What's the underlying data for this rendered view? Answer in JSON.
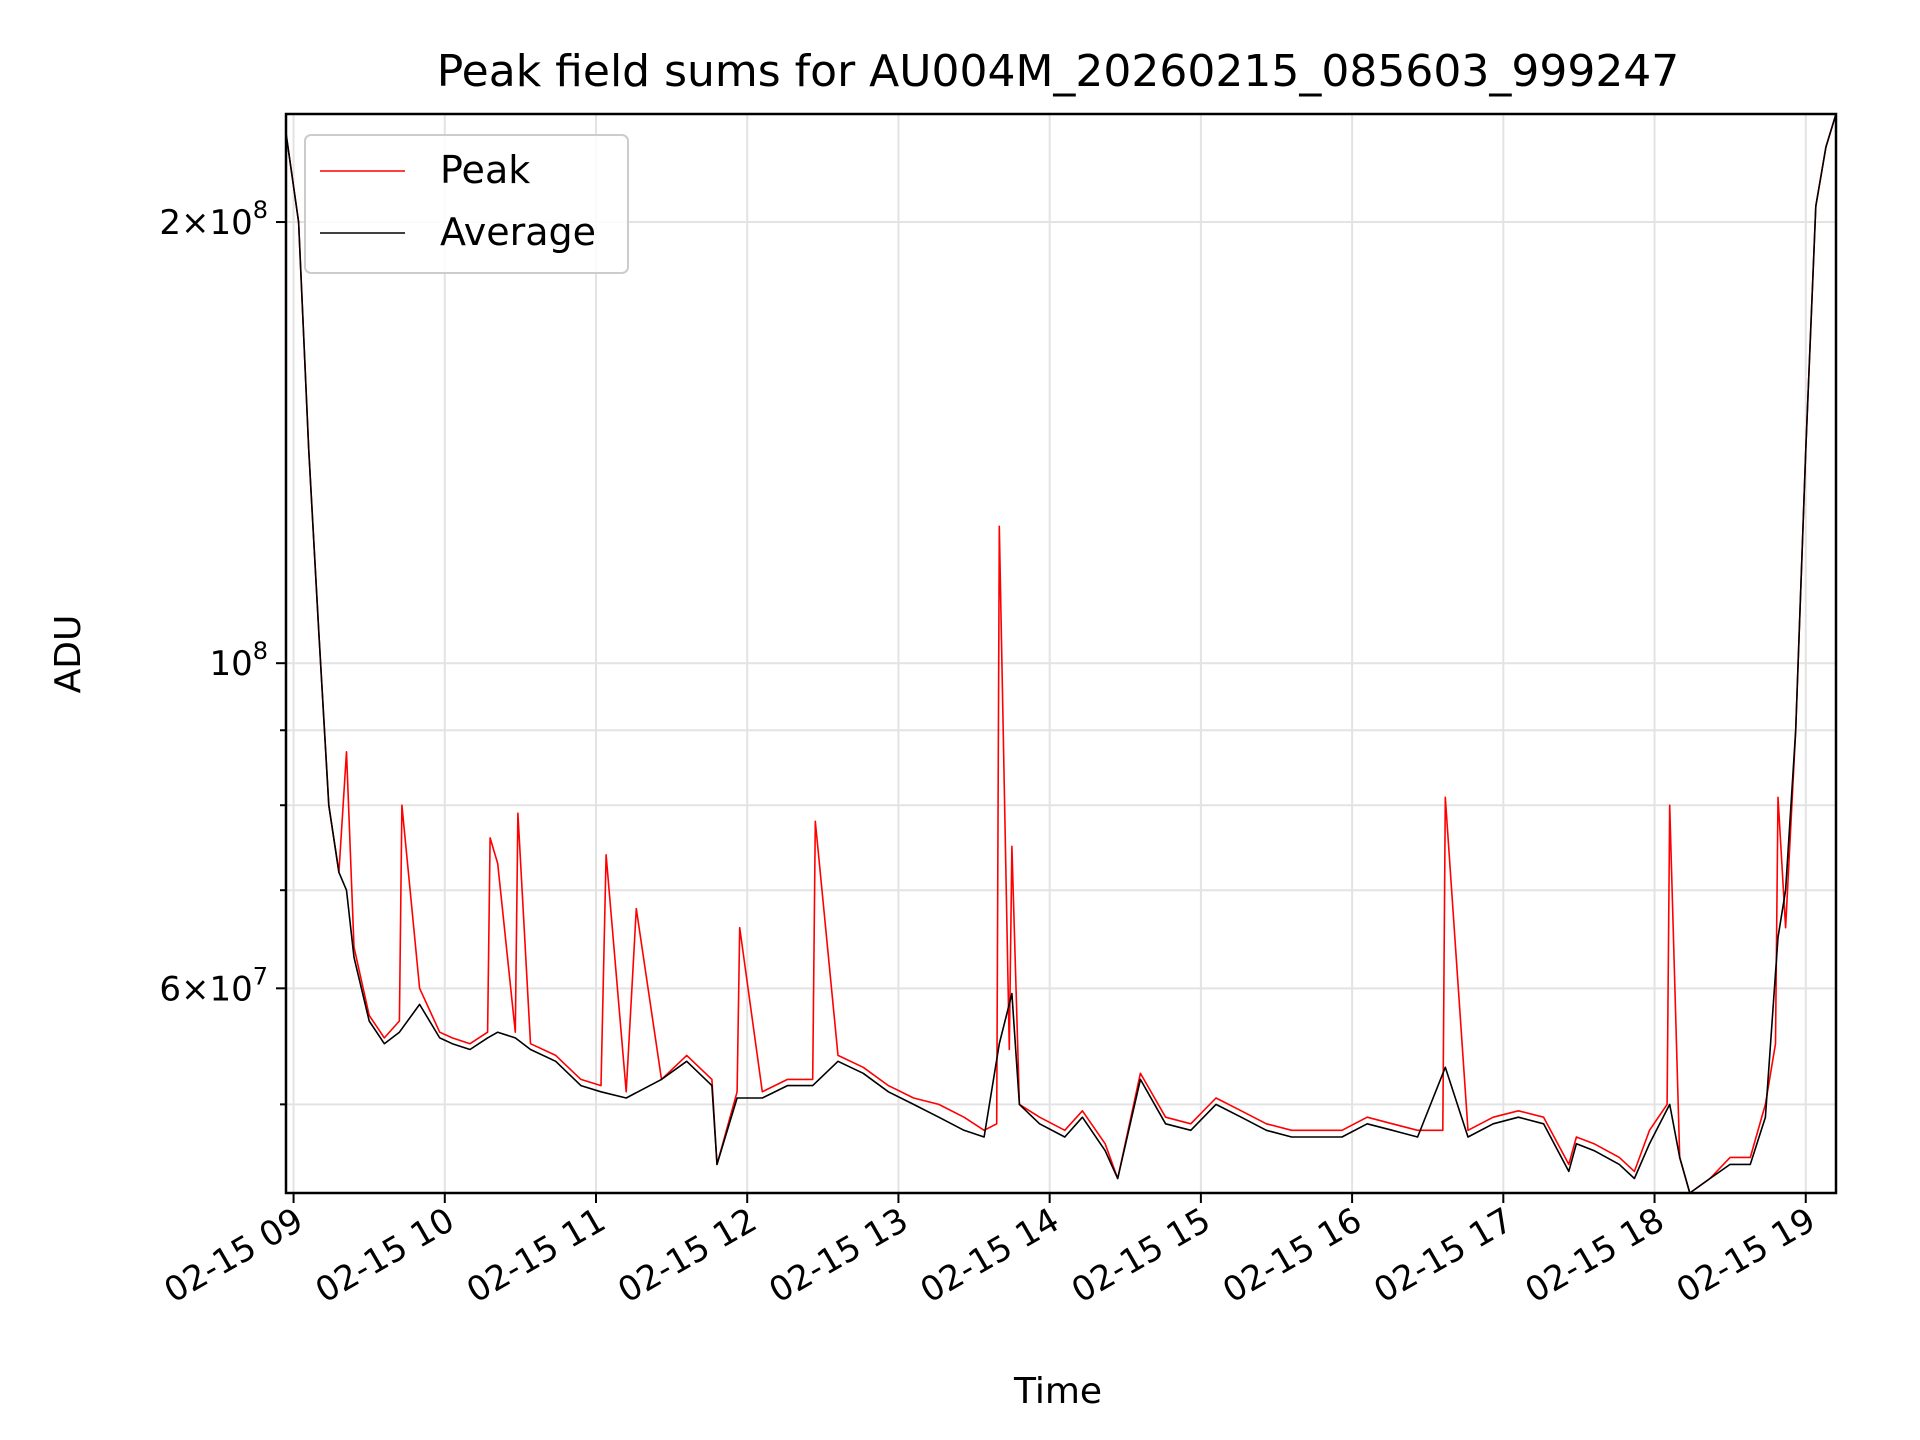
{
  "chart_data": {
    "type": "line",
    "title": "Peak field sums for AU004M_20260215_085603_999247",
    "xlabel": "Time",
    "ylabel": "ADU",
    "y_scale": "log",
    "grid": true,
    "legend_position": "top-left",
    "xlim": [
      "2026-02-15 08:57",
      "2026-02-15 19:12"
    ],
    "ylim": [
      43500000,
      237000000
    ],
    "x_ticks": [
      {
        "at": "2026-02-15 09:00",
        "label": "02-15 09"
      },
      {
        "at": "2026-02-15 10:00",
        "label": "02-15 10"
      },
      {
        "at": "2026-02-15 11:00",
        "label": "02-15 11"
      },
      {
        "at": "2026-02-15 12:00",
        "label": "02-15 12"
      },
      {
        "at": "2026-02-15 13:00",
        "label": "02-15 13"
      },
      {
        "at": "2026-02-15 14:00",
        "label": "02-15 14"
      },
      {
        "at": "2026-02-15 15:00",
        "label": "02-15 15"
      },
      {
        "at": "2026-02-15 16:00",
        "label": "02-15 16"
      },
      {
        "at": "2026-02-15 17:00",
        "label": "02-15 17"
      },
      {
        "at": "2026-02-15 18:00",
        "label": "02-15 18"
      },
      {
        "at": "2026-02-15 19:00",
        "label": "02-15 19"
      }
    ],
    "y_major_ticks": [
      {
        "value": 60000000,
        "mantissa": "6",
        "exponent": "7"
      },
      {
        "value": 100000000,
        "mantissa": "",
        "exponent": "8"
      },
      {
        "value": 200000000,
        "mantissa": "2",
        "exponent": "8"
      }
    ],
    "y_minor_ticks": [
      50000000,
      70000000,
      80000000,
      90000000
    ],
    "series": [
      {
        "name": "Peak",
        "color": "#ff0000",
        "x": [
          "2026-02-15 08:57",
          "2026-02-15 09:02",
          "2026-02-15 09:06",
          "2026-02-15 09:10",
          "2026-02-15 09:14",
          "2026-02-15 09:18",
          "2026-02-15 09:21",
          "2026-02-15 09:24",
          "2026-02-15 09:30",
          "2026-02-15 09:36",
          "2026-02-15 09:42",
          "2026-02-15 09:43",
          "2026-02-15 09:50",
          "2026-02-15 09:58",
          "2026-02-15 10:03",
          "2026-02-15 10:10",
          "2026-02-15 10:17",
          "2026-02-15 10:18",
          "2026-02-15 10:21",
          "2026-02-15 10:28",
          "2026-02-15 10:29",
          "2026-02-15 10:34",
          "2026-02-15 10:44",
          "2026-02-15 10:54",
          "2026-02-15 11:02",
          "2026-02-15 11:04",
          "2026-02-15 11:12",
          "2026-02-15 11:16",
          "2026-02-15 11:26",
          "2026-02-15 11:36",
          "2026-02-15 11:46",
          "2026-02-15 11:48",
          "2026-02-15 11:56",
          "2026-02-15 11:57",
          "2026-02-15 12:06",
          "2026-02-15 12:16",
          "2026-02-15 12:26",
          "2026-02-15 12:27",
          "2026-02-15 12:36",
          "2026-02-15 12:46",
          "2026-02-15 12:56",
          "2026-02-15 13:06",
          "2026-02-15 13:16",
          "2026-02-15 13:26",
          "2026-02-15 13:34",
          "2026-02-15 13:39",
          "2026-02-15 13:40",
          "2026-02-15 13:44",
          "2026-02-15 13:45",
          "2026-02-15 13:48",
          "2026-02-15 13:56",
          "2026-02-15 14:06",
          "2026-02-15 14:13",
          "2026-02-15 14:22",
          "2026-02-15 14:27",
          "2026-02-15 14:36",
          "2026-02-15 14:46",
          "2026-02-15 14:56",
          "2026-02-15 15:06",
          "2026-02-15 15:16",
          "2026-02-15 15:26",
          "2026-02-15 15:36",
          "2026-02-15 15:46",
          "2026-02-15 15:56",
          "2026-02-15 16:06",
          "2026-02-15 16:16",
          "2026-02-15 16:26",
          "2026-02-15 16:36",
          "2026-02-15 16:37",
          "2026-02-15 16:46",
          "2026-02-15 16:56",
          "2026-02-15 17:06",
          "2026-02-15 17:16",
          "2026-02-15 17:26",
          "2026-02-15 17:29",
          "2026-02-15 17:36",
          "2026-02-15 17:46",
          "2026-02-15 17:52",
          "2026-02-15 17:58",
          "2026-02-15 18:05",
          "2026-02-15 18:06",
          "2026-02-15 18:10",
          "2026-02-15 18:14",
          "2026-02-15 18:22",
          "2026-02-15 18:30",
          "2026-02-15 18:38",
          "2026-02-15 18:44",
          "2026-02-15 18:48",
          "2026-02-15 18:49",
          "2026-02-15 18:52",
          "2026-02-15 18:56",
          "2026-02-15 19:00",
          "2026-02-15 19:04",
          "2026-02-15 19:08",
          "2026-02-15 19:12"
        ],
        "y": [
          230000000,
          200000000,
          140000000,
          105000000,
          80000000,
          72000000,
          87000000,
          64000000,
          57500000,
          55500000,
          57000000,
          80000000,
          60000000,
          56000000,
          55500000,
          55000000,
          56000000,
          76000000,
          73000000,
          56000000,
          79000000,
          55000000,
          54000000,
          52000000,
          51500000,
          74000000,
          51000000,
          68000000,
          52000000,
          54000000,
          52000000,
          45500000,
          51000000,
          66000000,
          51000000,
          52000000,
          52000000,
          78000000,
          54000000,
          53000000,
          51500000,
          50500000,
          50000000,
          49000000,
          48000000,
          48500000,
          124000000,
          54500000,
          75000000,
          50000000,
          49000000,
          48000000,
          49500000,
          47000000,
          44500000,
          52500000,
          49000000,
          48500000,
          50500000,
          49500000,
          48500000,
          48000000,
          48000000,
          48000000,
          49000000,
          48500000,
          48000000,
          48000000,
          81000000,
          48000000,
          49000000,
          49500000,
          49000000,
          45500000,
          47500000,
          47000000,
          46000000,
          45000000,
          48000000,
          50000000,
          80000000,
          46000000,
          43500000,
          44500000,
          46000000,
          46000000,
          50000000,
          55000000,
          81000000,
          66000000,
          90000000,
          140000000,
          205000000,
          225000000,
          237000000
        ]
      },
      {
        "name": "Average",
        "color": "#000000",
        "x": [
          "2026-02-15 08:57",
          "2026-02-15 09:02",
          "2026-02-15 09:06",
          "2026-02-15 09:10",
          "2026-02-15 09:14",
          "2026-02-15 09:18",
          "2026-02-15 09:21",
          "2026-02-15 09:24",
          "2026-02-15 09:30",
          "2026-02-15 09:36",
          "2026-02-15 09:42",
          "2026-02-15 09:50",
          "2026-02-15 09:58",
          "2026-02-15 10:03",
          "2026-02-15 10:10",
          "2026-02-15 10:17",
          "2026-02-15 10:21",
          "2026-02-15 10:28",
          "2026-02-15 10:34",
          "2026-02-15 10:44",
          "2026-02-15 10:54",
          "2026-02-15 11:02",
          "2026-02-15 11:12",
          "2026-02-15 11:26",
          "2026-02-15 11:36",
          "2026-02-15 11:46",
          "2026-02-15 11:48",
          "2026-02-15 11:56",
          "2026-02-15 12:06",
          "2026-02-15 12:16",
          "2026-02-15 12:26",
          "2026-02-15 12:36",
          "2026-02-15 12:46",
          "2026-02-15 12:56",
          "2026-02-15 13:06",
          "2026-02-15 13:16",
          "2026-02-15 13:26",
          "2026-02-15 13:34",
          "2026-02-15 13:40",
          "2026-02-15 13:45",
          "2026-02-15 13:48",
          "2026-02-15 13:56",
          "2026-02-15 14:06",
          "2026-02-15 14:13",
          "2026-02-15 14:22",
          "2026-02-15 14:27",
          "2026-02-15 14:36",
          "2026-02-15 14:46",
          "2026-02-15 14:56",
          "2026-02-15 15:06",
          "2026-02-15 15:16",
          "2026-02-15 15:26",
          "2026-02-15 15:36",
          "2026-02-15 15:46",
          "2026-02-15 15:56",
          "2026-02-15 16:06",
          "2026-02-15 16:16",
          "2026-02-15 16:26",
          "2026-02-15 16:37",
          "2026-02-15 16:46",
          "2026-02-15 16:56",
          "2026-02-15 17:06",
          "2026-02-15 17:16",
          "2026-02-15 17:26",
          "2026-02-15 17:29",
          "2026-02-15 17:36",
          "2026-02-15 17:46",
          "2026-02-15 17:52",
          "2026-02-15 17:58",
          "2026-02-15 18:06",
          "2026-02-15 18:10",
          "2026-02-15 18:14",
          "2026-02-15 18:22",
          "2026-02-15 18:30",
          "2026-02-15 18:38",
          "2026-02-15 18:44",
          "2026-02-15 18:49",
          "2026-02-15 18:52",
          "2026-02-15 18:56",
          "2026-02-15 19:00",
          "2026-02-15 19:04",
          "2026-02-15 19:08",
          "2026-02-15 19:12"
        ],
        "y": [
          230000000,
          200000000,
          140000000,
          105000000,
          80000000,
          72000000,
          70000000,
          63000000,
          57000000,
          55000000,
          56000000,
          58500000,
          55500000,
          55000000,
          54500000,
          55500000,
          56000000,
          55500000,
          54500000,
          53500000,
          51500000,
          51000000,
          50500000,
          52000000,
          53500000,
          51500000,
          45500000,
          50500000,
          50500000,
          51500000,
          51500000,
          53500000,
          52500000,
          51000000,
          50000000,
          49000000,
          48000000,
          47500000,
          55000000,
          59500000,
          50000000,
          48500000,
          47500000,
          49000000,
          46500000,
          44500000,
          52000000,
          48500000,
          48000000,
          50000000,
          49000000,
          48000000,
          47500000,
          47500000,
          47500000,
          48500000,
          48000000,
          47500000,
          53000000,
          47500000,
          48500000,
          49000000,
          48500000,
          45000000,
          47000000,
          46500000,
          45500000,
          44500000,
          47000000,
          50000000,
          46000000,
          43500000,
          44500000,
          45500000,
          45500000,
          49000000,
          65000000,
          70000000,
          90000000,
          140000000,
          205000000,
          225000000,
          237000000
        ]
      }
    ]
  }
}
